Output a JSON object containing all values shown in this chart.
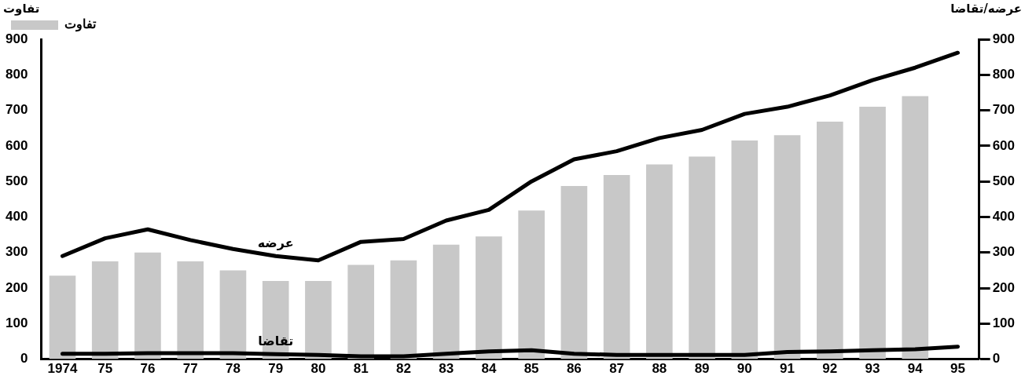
{
  "chart_data": {
    "type": "bar",
    "ylabel": "تفاوت",
    "y2label": "عرضه/تقاضا",
    "categories": [
      "1974",
      "75",
      "76",
      "77",
      "78",
      "79",
      "80",
      "81",
      "82",
      "83",
      "84",
      "85",
      "86",
      "87",
      "88",
      "89",
      "90",
      "91",
      "92",
      "93",
      "94",
      "95"
    ],
    "series": [
      {
        "name": "تفاوت",
        "color": "#c8c8c8",
        "values": [
          235,
          275,
          300,
          275,
          250,
          220,
          220,
          265,
          278,
          322,
          345,
          418,
          487,
          518,
          548,
          570,
          615,
          630,
          668,
          710,
          740,
          null
        ]
      },
      {
        "name": "عرضه",
        "type": "line",
        "color": "#000000",
        "values": [
          290,
          340,
          365,
          335,
          310,
          290,
          278,
          330,
          338,
          390,
          420,
          500,
          562,
          585,
          622,
          645,
          690,
          710,
          742,
          785,
          820,
          862
        ]
      },
      {
        "name": "تقاضا",
        "type": "line",
        "color": "#000000",
        "values": [
          15,
          15,
          17,
          17,
          17,
          14,
          12,
          8,
          8,
          15,
          22,
          25,
          15,
          12,
          12,
          12,
          12,
          20,
          22,
          25,
          28,
          35
        ]
      }
    ],
    "ylim": [
      0,
      900
    ],
    "yticks": [
      0,
      100,
      200,
      300,
      400,
      500,
      600,
      700,
      800,
      900
    ],
    "y2lim": [
      0,
      900
    ],
    "y2ticks": [
      0,
      100,
      200,
      300,
      400,
      500,
      600,
      700,
      800,
      900
    ],
    "grid": false,
    "legend": "top left",
    "marker": "none",
    "line_style": "solid"
  }
}
